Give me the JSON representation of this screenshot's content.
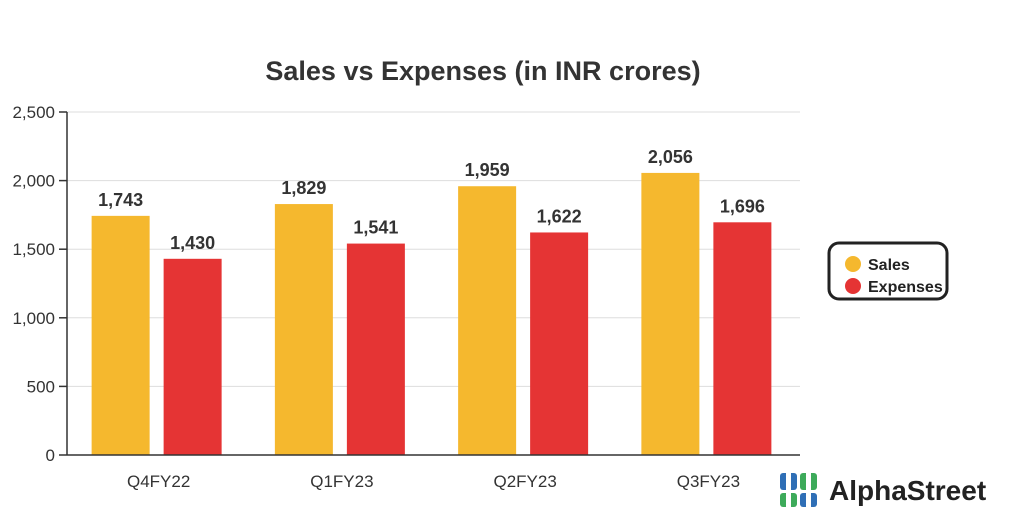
{
  "chart_data": {
    "type": "bar",
    "title": "Sales vs Expenses (in INR crores)",
    "categories": [
      "Q4FY22",
      "Q1FY23",
      "Q2FY23",
      "Q3FY23"
    ],
    "series": [
      {
        "name": "Sales",
        "values": [
          1743,
          1829,
          1959,
          2056
        ],
        "labels": [
          "1,743",
          "1,829",
          "1,959",
          "2,056"
        ],
        "color": "#F5B82E"
      },
      {
        "name": "Expenses",
        "values": [
          1430,
          1541,
          1622,
          1696
        ],
        "labels": [
          "1,430",
          "1,541",
          "1,622",
          "1,696"
        ],
        "color": "#E53434"
      }
    ],
    "ylim": [
      0,
      2500
    ],
    "yticks": [
      0,
      500,
      1000,
      1500,
      2000,
      2500
    ],
    "ytick_labels": [
      "0",
      "500",
      "1,000",
      "1,500",
      "2,000",
      "2,500"
    ],
    "xlabel": "",
    "ylabel": "",
    "grid": true,
    "legend_position": "right"
  },
  "brand": {
    "name": "AlphaStreet",
    "logo_icon": "alphastreet-logo-icon",
    "logo_colors": [
      "#2F6FB6",
      "#3DAA5A"
    ]
  }
}
